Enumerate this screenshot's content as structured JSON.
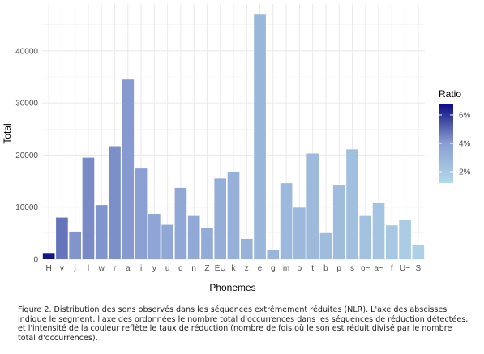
{
  "chart_data": {
    "type": "bar",
    "xlabel": "Phonemes",
    "ylabel": "Total",
    "ylim": [
      0,
      49000
    ],
    "yticks": [
      0,
      10000,
      20000,
      30000,
      40000
    ],
    "grid": true,
    "legend": {
      "title": "Ratio",
      "position": "right",
      "ticks": [
        "6%",
        "4%",
        "2%"
      ],
      "tick_values": [
        6,
        4,
        2
      ]
    },
    "color_low": "#b2d9ea",
    "color_high": "#0a0a80",
    "categories": [
      "H",
      "v",
      "j",
      "l",
      "w",
      "r",
      "a",
      "i",
      "y",
      "u",
      "d",
      "n",
      "Z",
      "EU",
      "k",
      "z",
      "e",
      "g",
      "m",
      "o",
      "t",
      "b",
      "p",
      "s",
      "o~",
      "a~",
      "f",
      "U~",
      "S"
    ],
    "values": [
      1200,
      8000,
      5300,
      19500,
      10400,
      21700,
      34500,
      17400,
      8700,
      6600,
      13700,
      8300,
      6000,
      15500,
      16800,
      3900,
      47100,
      1800,
      14600,
      9900,
      20300,
      5000,
      14300,
      21100,
      8300,
      10900,
      6500,
      7600,
      2700
    ],
    "ratio": [
      6.6,
      4.8,
      4.2,
      4.4,
      4.2,
      4.3,
      4.1,
      4.0,
      3.7,
      3.6,
      3.6,
      3.5,
      3.4,
      3.3,
      3.2,
      3.1,
      2.9,
      2.9,
      2.8,
      2.8,
      2.7,
      2.6,
      2.6,
      2.4,
      2.3,
      2.2,
      2.0,
      1.8,
      1.6
    ]
  },
  "caption": "Figure 2. Distribution des sons observés dans les séquences extrêmement réduites (NLR). L'axe des abscisses indique le segment, l'axe des ordonnées le nombre total d'occurrences dans les séquences de réduction détectées, et l'intensité de la couleur reflète le taux de réduction (nombre de fois où le son est réduit divisé par le nombre total d'occurrences)."
}
